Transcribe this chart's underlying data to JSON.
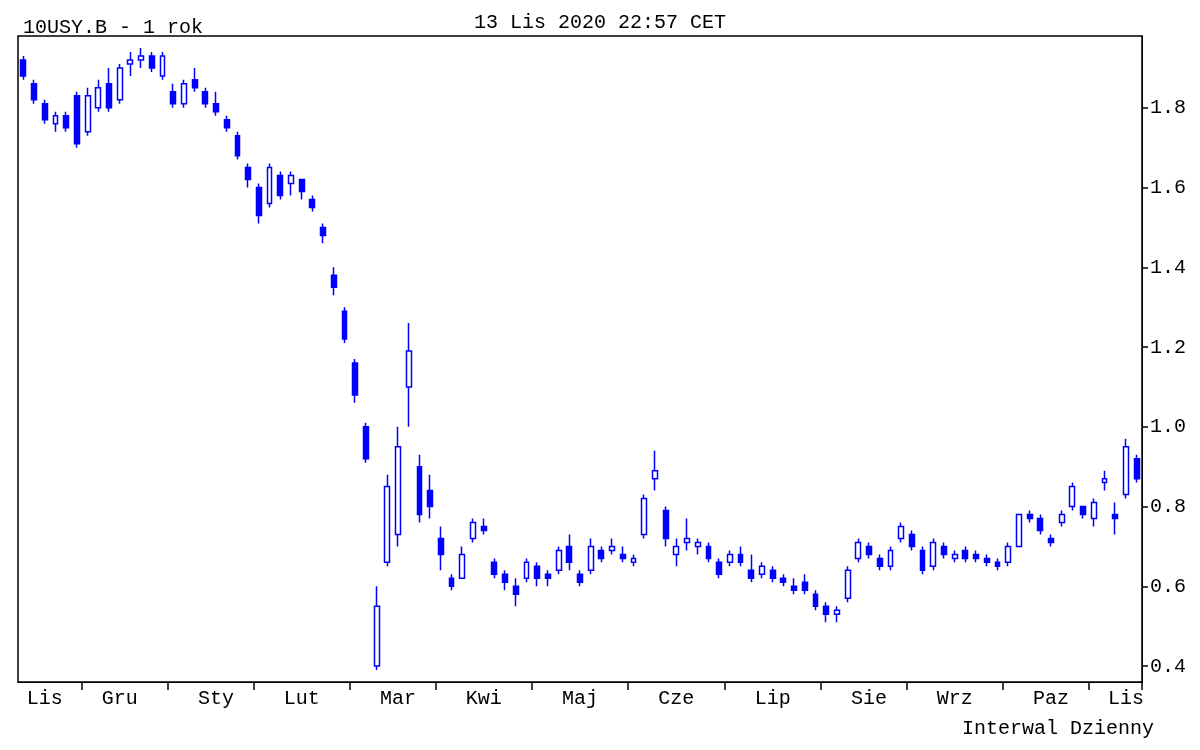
{
  "chart_data": {
    "type": "candlestick",
    "title": "10USY.B - 1 rok",
    "subtitle": "13 Lis 2020 22:57 CET",
    "annotations": [
      "Interwal Dzienny"
    ],
    "color": "#0000ff",
    "grid": false,
    "categories": [
      null,
      null,
      "Lis",
      null,
      null,
      null,
      null,
      null,
      null,
      "Gru",
      null,
      null,
      null,
      null,
      null,
      null,
      null,
      null,
      "Sty",
      null,
      null,
      null,
      null,
      null,
      null,
      null,
      "Lut",
      null,
      null,
      null,
      null,
      null,
      null,
      null,
      null,
      "Mar",
      null,
      null,
      null,
      null,
      null,
      null,
      null,
      "Kwi",
      null,
      null,
      null,
      null,
      null,
      null,
      null,
      null,
      "Maj",
      null,
      null,
      null,
      null,
      null,
      null,
      null,
      null,
      "Cze",
      null,
      null,
      null,
      null,
      null,
      null,
      null,
      null,
      "Lip",
      null,
      null,
      null,
      null,
      null,
      null,
      null,
      null,
      "Sie",
      null,
      null,
      null,
      null,
      null,
      null,
      null,
      "Wrz",
      null,
      null,
      null,
      null,
      null,
      null,
      null,
      null,
      "Paz",
      null,
      null,
      null,
      null,
      null,
      null,
      "Lis",
      null
    ],
    "ylim": [
      0.36,
      1.98
    ],
    "yticks": [
      0.4,
      0.6,
      0.8,
      {
        "value": 1,
        "label": "1.0"
      },
      1.2,
      1.4,
      1.6,
      1.8
    ],
    "ohlc": [
      [
        1.92,
        1.93,
        1.87,
        1.88
      ],
      [
        1.86,
        1.87,
        1.81,
        1.82
      ],
      [
        1.81,
        1.82,
        1.76,
        1.77
      ],
      [
        1.76,
        1.79,
        1.74,
        1.78
      ],
      [
        1.78,
        1.79,
        1.74,
        1.75
      ],
      [
        1.83,
        1.84,
        1.7,
        1.71
      ],
      [
        1.74,
        1.85,
        1.73,
        1.83
      ],
      [
        1.8,
        1.87,
        1.79,
        1.85
      ],
      [
        1.86,
        1.9,
        1.79,
        1.8
      ],
      [
        1.82,
        1.91,
        1.81,
        1.9
      ],
      [
        1.91,
        1.94,
        1.88,
        1.92
      ],
      [
        1.92,
        1.95,
        1.9,
        1.93
      ],
      [
        1.93,
        1.94,
        1.89,
        1.9
      ],
      [
        1.88,
        1.94,
        1.87,
        1.93
      ],
      [
        1.84,
        1.86,
        1.8,
        1.81
      ],
      [
        1.81,
        1.87,
        1.8,
        1.86
      ],
      [
        1.87,
        1.9,
        1.84,
        1.85
      ],
      [
        1.84,
        1.85,
        1.8,
        1.81
      ],
      [
        1.81,
        1.84,
        1.78,
        1.79
      ],
      [
        1.77,
        1.78,
        1.74,
        1.75
      ],
      [
        1.73,
        1.74,
        1.67,
        1.68
      ],
      [
        1.65,
        1.66,
        1.6,
        1.62
      ],
      [
        1.6,
        1.61,
        1.51,
        1.53
      ],
      [
        1.56,
        1.66,
        1.55,
        1.65
      ],
      [
        1.63,
        1.64,
        1.57,
        1.58
      ],
      [
        1.61,
        1.64,
        1.58,
        1.63
      ],
      [
        1.62,
        1.62,
        1.57,
        1.59
      ],
      [
        1.57,
        1.58,
        1.54,
        1.55
      ],
      [
        1.5,
        1.51,
        1.46,
        1.48
      ],
      [
        1.38,
        1.4,
        1.33,
        1.35
      ],
      [
        1.29,
        1.3,
        1.21,
        1.22
      ],
      [
        1.16,
        1.17,
        1.06,
        1.08
      ],
      [
        1.0,
        1.01,
        0.91,
        0.92
      ],
      [
        0.4,
        0.6,
        0.39,
        0.55
      ],
      [
        0.66,
        0.88,
        0.65,
        0.85
      ],
      [
        0.73,
        1.0,
        0.7,
        0.95
      ],
      [
        1.1,
        1.26,
        1.0,
        1.19
      ],
      [
        0.9,
        0.93,
        0.76,
        0.78
      ],
      [
        0.84,
        0.88,
        0.77,
        0.8
      ],
      [
        0.72,
        0.75,
        0.64,
        0.68
      ],
      [
        0.62,
        0.63,
        0.59,
        0.6
      ],
      [
        0.62,
        0.7,
        0.62,
        0.68
      ],
      [
        0.72,
        0.77,
        0.71,
        0.76
      ],
      [
        0.75,
        0.77,
        0.73,
        0.74
      ],
      [
        0.66,
        0.67,
        0.62,
        0.63
      ],
      [
        0.63,
        0.64,
        0.59,
        0.61
      ],
      [
        0.6,
        0.62,
        0.55,
        0.58
      ],
      [
        0.62,
        0.67,
        0.61,
        0.66
      ],
      [
        0.65,
        0.66,
        0.6,
        0.62
      ],
      [
        0.63,
        0.64,
        0.6,
        0.62
      ],
      [
        0.64,
        0.7,
        0.63,
        0.69
      ],
      [
        0.7,
        0.73,
        0.64,
        0.66
      ],
      [
        0.63,
        0.64,
        0.6,
        0.61
      ],
      [
        0.64,
        0.72,
        0.63,
        0.7
      ],
      [
        0.69,
        0.7,
        0.66,
        0.67
      ],
      [
        0.69,
        0.72,
        0.68,
        0.7
      ],
      [
        0.68,
        0.7,
        0.66,
        0.67
      ],
      [
        0.66,
        0.68,
        0.65,
        0.67
      ],
      [
        0.73,
        0.83,
        0.72,
        0.82
      ],
      [
        0.87,
        0.94,
        0.84,
        0.89
      ],
      [
        0.79,
        0.8,
        0.7,
        0.72
      ],
      [
        0.68,
        0.72,
        0.65,
        0.7
      ],
      [
        0.71,
        0.77,
        0.69,
        0.72
      ],
      [
        0.7,
        0.72,
        0.68,
        0.71
      ],
      [
        0.7,
        0.71,
        0.66,
        0.67
      ],
      [
        0.66,
        0.67,
        0.62,
        0.63
      ],
      [
        0.66,
        0.69,
        0.65,
        0.68
      ],
      [
        0.68,
        0.7,
        0.65,
        0.66
      ],
      [
        0.64,
        0.68,
        0.61,
        0.62
      ],
      [
        0.63,
        0.66,
        0.62,
        0.65
      ],
      [
        0.64,
        0.65,
        0.61,
        0.62
      ],
      [
        0.62,
        0.63,
        0.6,
        0.61
      ],
      [
        0.6,
        0.62,
        0.58,
        0.59
      ],
      [
        0.61,
        0.63,
        0.58,
        0.59
      ],
      [
        0.58,
        0.59,
        0.54,
        0.55
      ],
      [
        0.55,
        0.56,
        0.51,
        0.53
      ],
      [
        0.53,
        0.55,
        0.51,
        0.54
      ],
      [
        0.57,
        0.65,
        0.56,
        0.64
      ],
      [
        0.67,
        0.72,
        0.66,
        0.71
      ],
      [
        0.7,
        0.71,
        0.67,
        0.68
      ],
      [
        0.67,
        0.68,
        0.64,
        0.65
      ],
      [
        0.65,
        0.7,
        0.64,
        0.69
      ],
      [
        0.72,
        0.76,
        0.71,
        0.75
      ],
      [
        0.73,
        0.74,
        0.69,
        0.7
      ],
      [
        0.69,
        0.7,
        0.63,
        0.64
      ],
      [
        0.65,
        0.72,
        0.64,
        0.71
      ],
      [
        0.7,
        0.71,
        0.67,
        0.68
      ],
      [
        0.67,
        0.69,
        0.66,
        0.68
      ],
      [
        0.69,
        0.7,
        0.66,
        0.67
      ],
      [
        0.68,
        0.69,
        0.66,
        0.67
      ],
      [
        0.67,
        0.68,
        0.65,
        0.66
      ],
      [
        0.66,
        0.67,
        0.64,
        0.65
      ],
      [
        0.66,
        0.71,
        0.65,
        0.7
      ],
      [
        0.7,
        0.78,
        0.7,
        0.78
      ],
      [
        0.78,
        0.79,
        0.76,
        0.77
      ],
      [
        0.77,
        0.78,
        0.73,
        0.74
      ],
      [
        0.72,
        0.73,
        0.7,
        0.71
      ],
      [
        0.76,
        0.79,
        0.75,
        0.78
      ],
      [
        0.8,
        0.86,
        0.79,
        0.85
      ],
      [
        0.8,
        0.8,
        0.77,
        0.78
      ],
      [
        0.77,
        0.82,
        0.75,
        0.81
      ],
      [
        0.86,
        0.89,
        0.84,
        0.87
      ],
      [
        0.78,
        0.81,
        0.73,
        0.77
      ],
      [
        0.83,
        0.97,
        0.82,
        0.95
      ],
      [
        0.92,
        0.93,
        0.86,
        0.87
      ]
    ]
  }
}
